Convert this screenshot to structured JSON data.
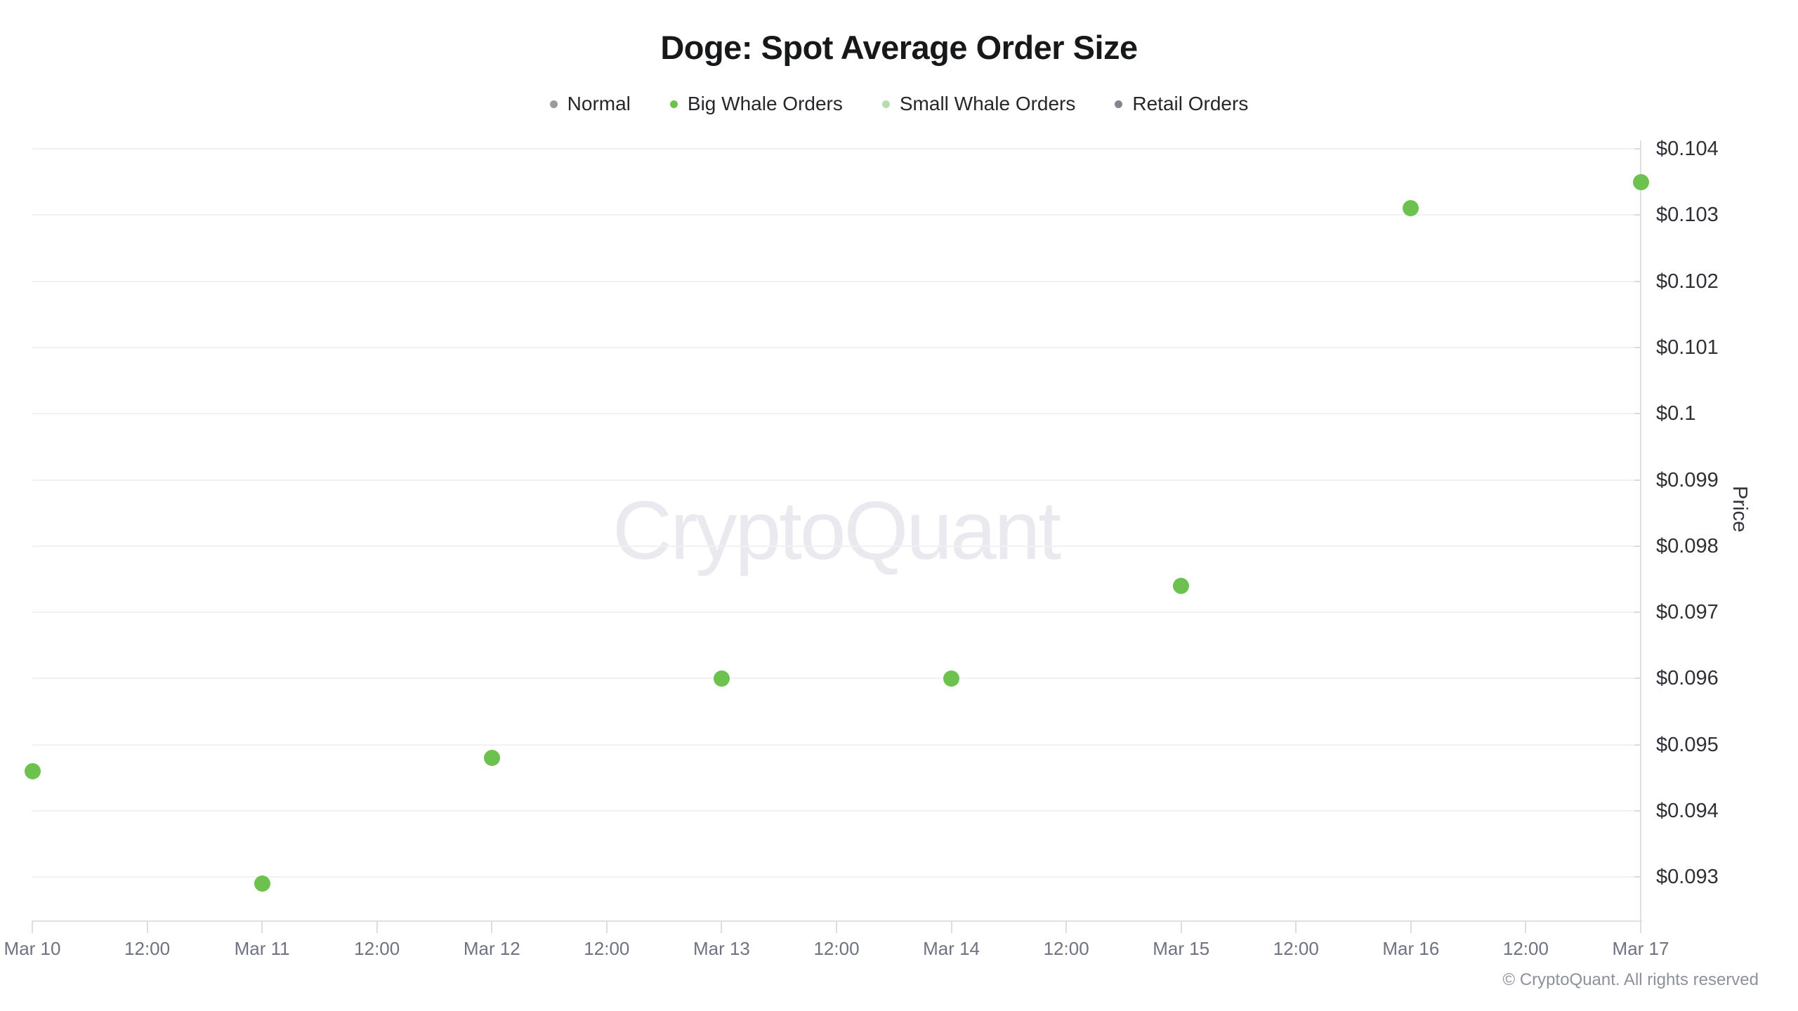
{
  "title": "Doge: Spot Average Order Size",
  "watermark": "CryptoQuant",
  "copyright": "© CryptoQuant. All rights reserved",
  "legend": {
    "items": [
      {
        "label": "Normal",
        "color": "#9a999f"
      },
      {
        "label": "Big Whale Orders",
        "color": "#6cc14f"
      },
      {
        "label": "Small Whale Orders",
        "color": "#b8dcab"
      },
      {
        "label": "Retail Orders",
        "color": "#868490"
      }
    ]
  },
  "chart_data": {
    "type": "scatter",
    "title": "Doge: Spot Average Order Size",
    "ylabel": "Price",
    "grid": true,
    "legend_position": "top",
    "x_axis": {
      "days": [
        "Mar 10",
        "Mar 11",
        "Mar 12",
        "Mar 13",
        "Mar 14",
        "Mar 15",
        "Mar 16",
        "Mar 17"
      ],
      "minor_label": "12:00",
      "note": "half-day ticks, labels alternate day / 12:00"
    },
    "y_axis": {
      "min": 0.093,
      "max": 0.104,
      "step": 0.001,
      "tick_labels": [
        "$0.104",
        "$0.103",
        "$0.102",
        "$0.101",
        "$0.1",
        "$0.099",
        "$0.098",
        "$0.097",
        "$0.096",
        "$0.095",
        "$0.094",
        "$0.093"
      ]
    },
    "series": [
      {
        "name": "Normal",
        "color": "#9a999f",
        "points": []
      },
      {
        "name": "Big Whale Orders",
        "color": "#6cc14f",
        "points": [
          {
            "date": "Mar 10",
            "price": 0.0946
          },
          {
            "date": "Mar 11",
            "price": 0.0929
          },
          {
            "date": "Mar 12",
            "price": 0.0948
          },
          {
            "date": "Mar 13",
            "price": 0.096
          },
          {
            "date": "Mar 14",
            "price": 0.096
          },
          {
            "date": "Mar 15",
            "price": 0.0974
          },
          {
            "date": "Mar 16",
            "price": 0.1031
          },
          {
            "date": "Mar 17",
            "price": 0.1035
          }
        ]
      },
      {
        "name": "Small Whale Orders",
        "color": "#b8dcab",
        "points": []
      },
      {
        "name": "Retail Orders",
        "color": "#868490",
        "points": []
      }
    ]
  }
}
